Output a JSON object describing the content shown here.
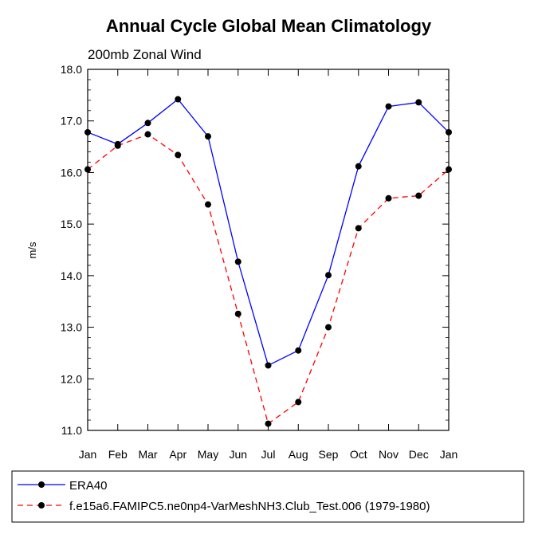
{
  "chart_data": {
    "type": "line",
    "title": "Annual Cycle Global Mean Climatology",
    "subtitle": "200mb Zonal Wind",
    "xlabel": "",
    "ylabel": "m/s",
    "categories": [
      "Jan",
      "Feb",
      "Mar",
      "Apr",
      "May",
      "Jun",
      "Jul",
      "Aug",
      "Sep",
      "Oct",
      "Nov",
      "Dec",
      "Jan"
    ],
    "ylim": [
      11.0,
      18.0
    ],
    "yticks": [
      "11.0",
      "12.0",
      "13.0",
      "14.0",
      "15.0",
      "16.0",
      "17.0",
      "18.0"
    ],
    "series": [
      {
        "name": "ERA40",
        "color": "#0000ff",
        "dash": "solid",
        "marker": "filled-circle",
        "values": [
          16.78,
          16.55,
          16.96,
          17.42,
          16.7,
          14.27,
          12.26,
          12.55,
          14.01,
          16.12,
          17.28,
          17.36,
          16.78
        ]
      },
      {
        "name": "f.e15a6.FAMIPC5.ne0np4-VarMeshNH3.Club_Test.006 (1979-1980)",
        "color": "#ff0000",
        "dash": "dashed",
        "marker": "filled-circle",
        "values": [
          16.06,
          16.52,
          16.74,
          16.34,
          15.38,
          13.26,
          11.13,
          11.55,
          13.0,
          14.92,
          15.5,
          15.55,
          16.06
        ]
      }
    ],
    "grid": false,
    "legend_position": "bottom"
  }
}
